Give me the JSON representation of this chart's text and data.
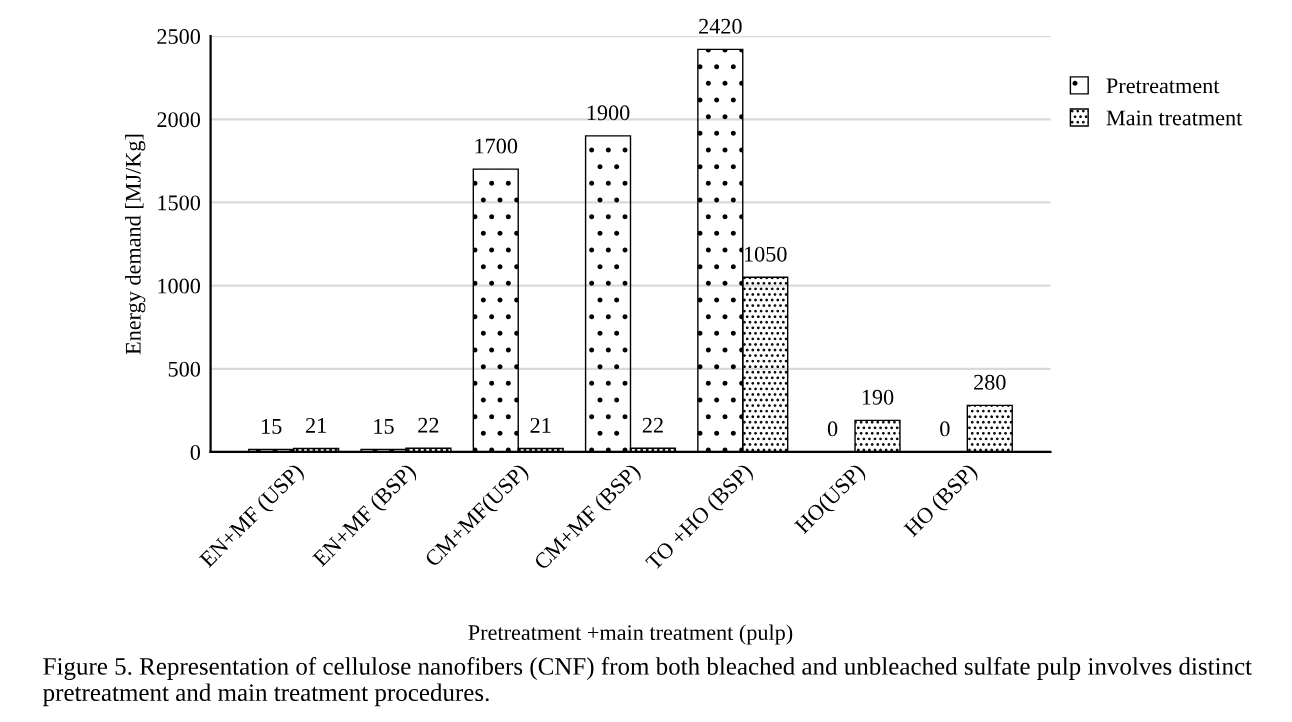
{
  "chart_data": {
    "type": "bar",
    "xlabel": "Pretreatment +main treatment (pulp)",
    "ylabel": "Energy demand [MJ/Kg]",
    "categories": [
      "EN+MF (USP)",
      "EN+MF (BSP)",
      "CM+MF(USP)",
      "CM+MF (BSP)",
      "TO +HO (BSP)",
      "HO(USP)",
      "HO (BSP)"
    ],
    "series": [
      {
        "name": "Pretreatment",
        "color": "#000000",
        "values": [
          15,
          15,
          1700,
          1900,
          2420,
          0,
          0
        ]
      },
      {
        "name": "Main treatment",
        "color": "#000000",
        "values": [
          21,
          22,
          21,
          22,
          1050,
          190,
          280
        ]
      }
    ],
    "ylim": [
      0,
      2500
    ],
    "yticks": [
      0,
      500,
      1000,
      1500,
      2000,
      2500
    ],
    "grid": "y",
    "legend": "right",
    "data_labels": true,
    "annotations": [
      "Figure 5. Representation of cellulose nanofibers (CNF) from both bleached and unbleached sulfate pulp involves distinct pretreatment and main treatment procedures."
    ]
  }
}
